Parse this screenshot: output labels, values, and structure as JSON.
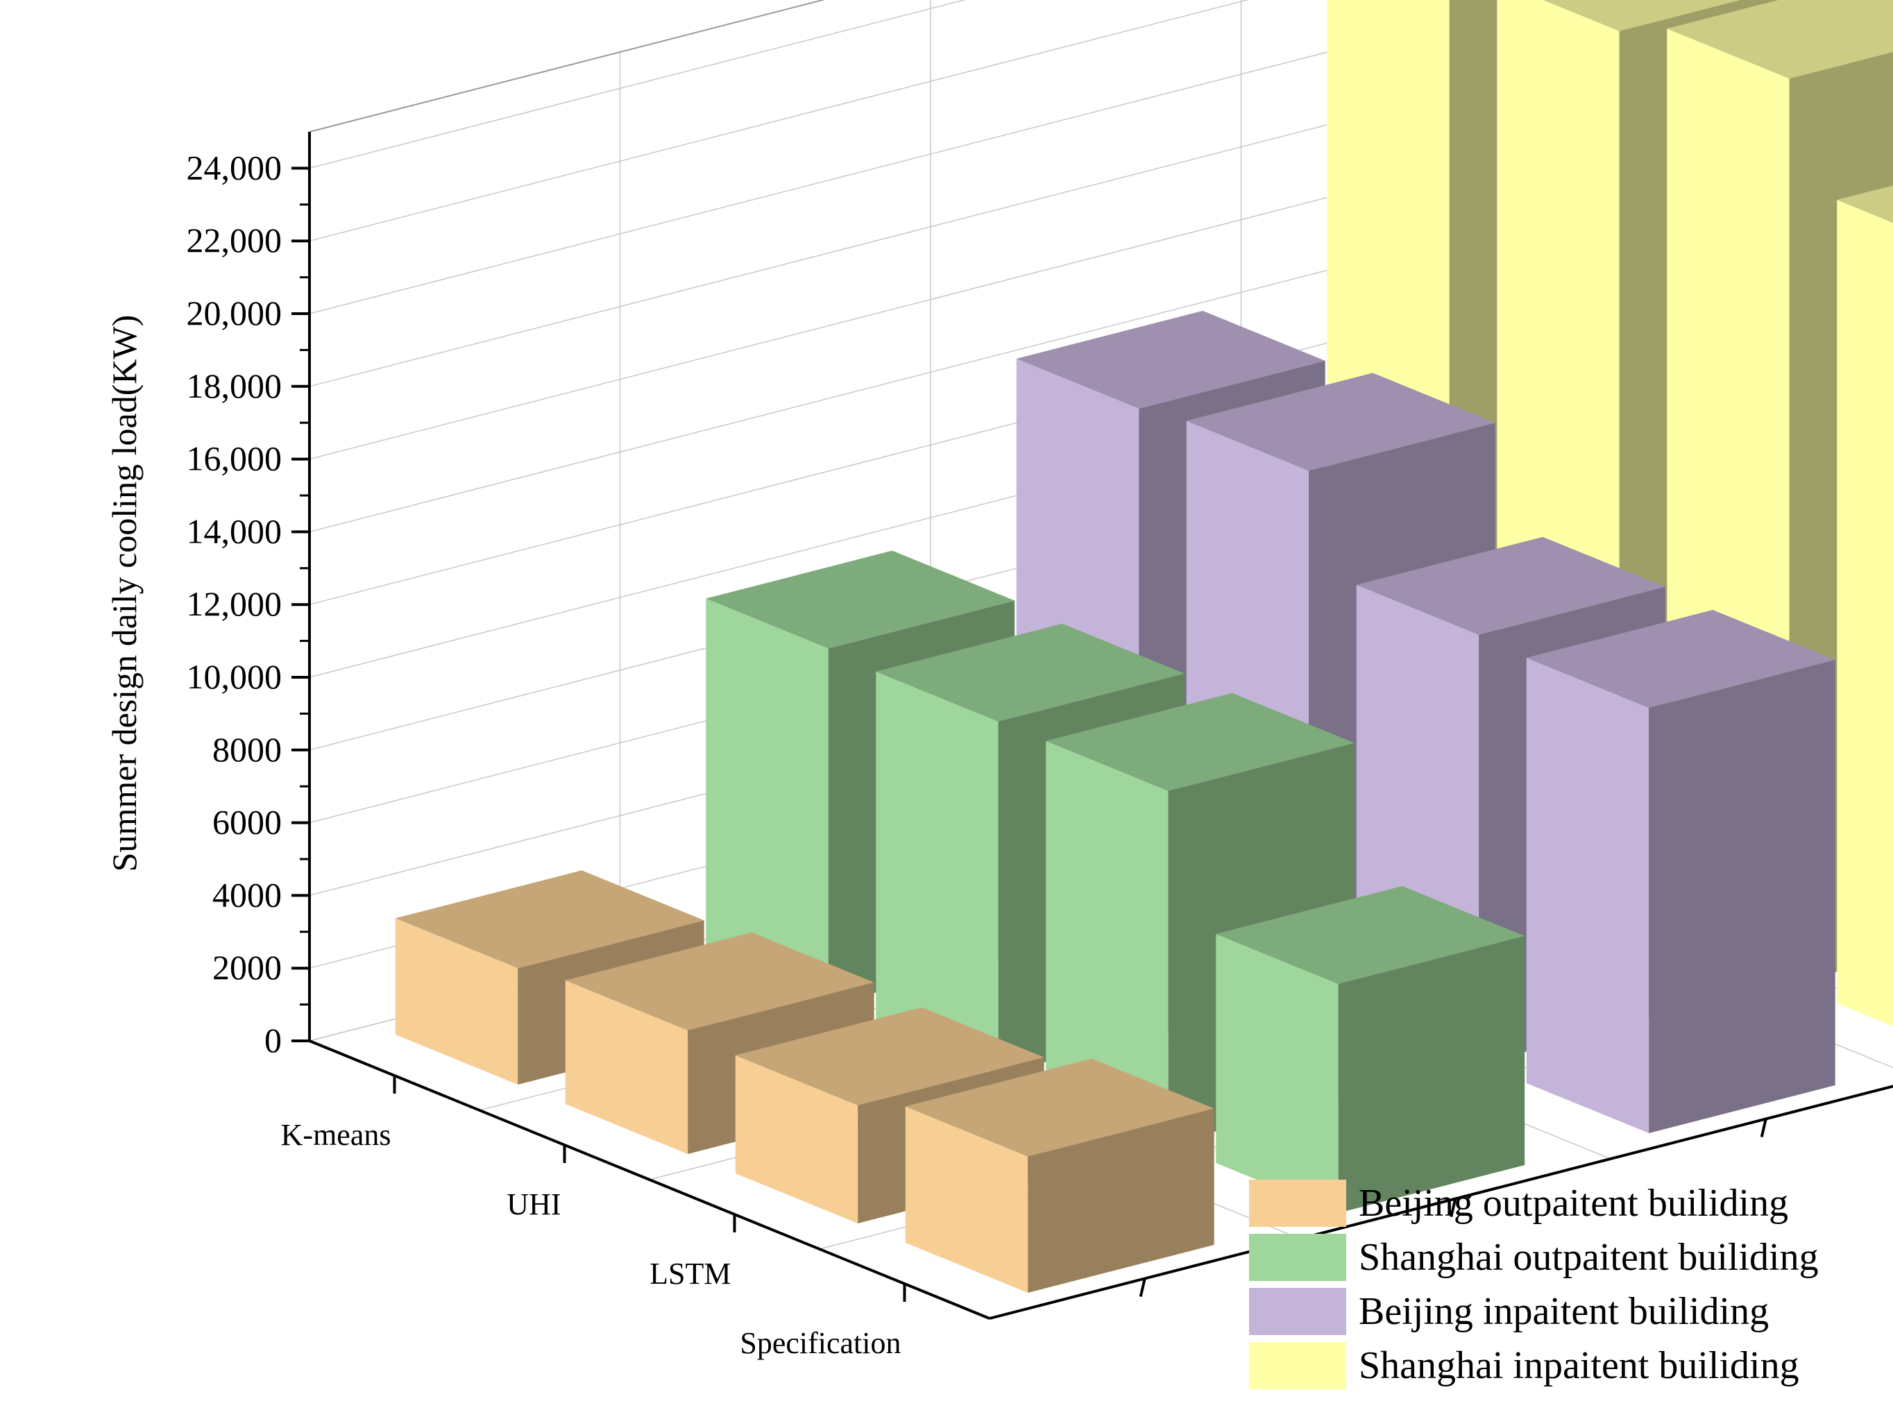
{
  "chart_data": {
    "type": "bar",
    "variant": "3d-grouped",
    "title": "",
    "xlabel": "",
    "ylabel": "Summer design daily cooling load(KW)",
    "categories": [
      "K-means",
      "UHI",
      "LSTM",
      "Specification"
    ],
    "ylim": [
      0,
      25000
    ],
    "yticks": [
      "0",
      "2000",
      "4000",
      "6000",
      "8000",
      "10,000",
      "12,000",
      "14,000",
      "16,000",
      "18,000",
      "20,000",
      "22,000",
      "24,000"
    ],
    "grid": true,
    "legend_position": "bottom-right",
    "series": [
      {
        "name": "Beijing outpaitent builiding",
        "color": "#f7cf95",
        "values": [
          3200,
          3400,
          3250,
          3750
        ]
      },
      {
        "name": "Shanghai outpaitent builiding",
        "color": "#9ed69b",
        "values": [
          9800,
          9700,
          9700,
          6300
        ]
      },
      {
        "name": "Beijing inpaitent builiding",
        "color": "#c5b4d9",
        "values": [
          14200,
          14400,
          11800,
          11700
        ]
      },
      {
        "name": "Shanghai inpaitent builiding",
        "color": "#ffffa6",
        "values": [
          24400,
          24300,
          24900,
          22100
        ]
      }
    ]
  }
}
